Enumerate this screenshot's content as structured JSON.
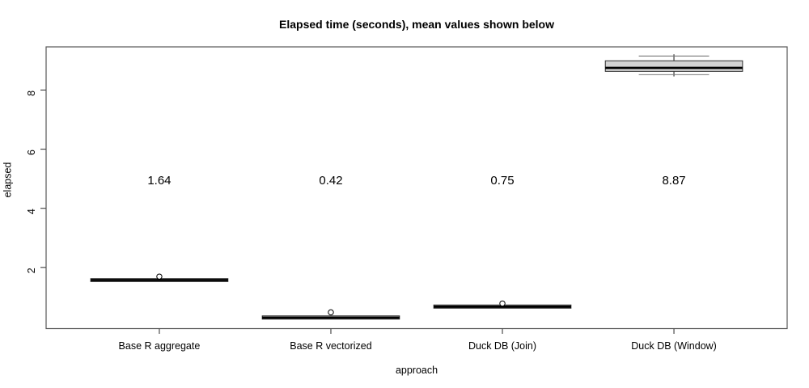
{
  "title": "Elapsed time (seconds), mean values shown below",
  "x_axis": {
    "label": "approach",
    "categories": [
      "Base R aggregate",
      "Base R vectorized",
      "Duck DB (Join)",
      "Duck DB (Window)"
    ]
  },
  "y_axis": {
    "label": "elapsed",
    "ticks": [
      "2",
      "4",
      "6",
      "8"
    ]
  },
  "chart_data": {
    "type": "boxplot",
    "title": "Elapsed time (seconds), mean values shown below",
    "xlabel": "approach",
    "ylabel": "elapsed",
    "categories": [
      "Base R aggregate",
      "Base R vectorized",
      "Duck DB (Join)",
      "Duck DB (Window)"
    ],
    "means": [
      1.64,
      0.42,
      0.75,
      8.87
    ],
    "mean_labels": [
      "1.64",
      "0.42",
      "0.75",
      "8.87"
    ],
    "mean_label_value_y": 4.95,
    "ylim": [
      -0.07,
      9.46
    ],
    "y_ticks": [
      2,
      4,
      6,
      8
    ],
    "grid": false,
    "legend": "none",
    "series": [
      {
        "name": "Base R aggregate",
        "q1": 1.52,
        "median": 1.57,
        "q3": 1.62,
        "whisker_low": 1.52,
        "whisker_high": 1.62,
        "outliers": [
          1.69
        ]
      },
      {
        "name": "Base R vectorized",
        "q1": 0.25,
        "median": 0.3,
        "q3": 0.36,
        "whisker_low": 0.25,
        "whisker_high": 0.36,
        "outliers": [
          0.48
        ]
      },
      {
        "name": "Duck DB (Join)",
        "q1": 0.62,
        "median": 0.67,
        "q3": 0.73,
        "whisker_low": 0.62,
        "whisker_high": 0.73,
        "outliers": [
          0.78
        ]
      },
      {
        "name": "Duck DB (Window)",
        "q1": 8.63,
        "median": 8.75,
        "q3": 8.99,
        "whisker_low": 8.52,
        "whisker_high": 9.15,
        "outliers": []
      }
    ]
  },
  "style": {
    "background": "#ffffff",
    "box_fill": "#d3d3d3",
    "box_border": "#2e2e2e",
    "median_color": "#000000",
    "whisker_color": "#2a2a2a",
    "staple_color": "#7a7a7a",
    "frame_color": "#585858",
    "tick_color": "#4c4c4c",
    "text_color": "#000000"
  }
}
